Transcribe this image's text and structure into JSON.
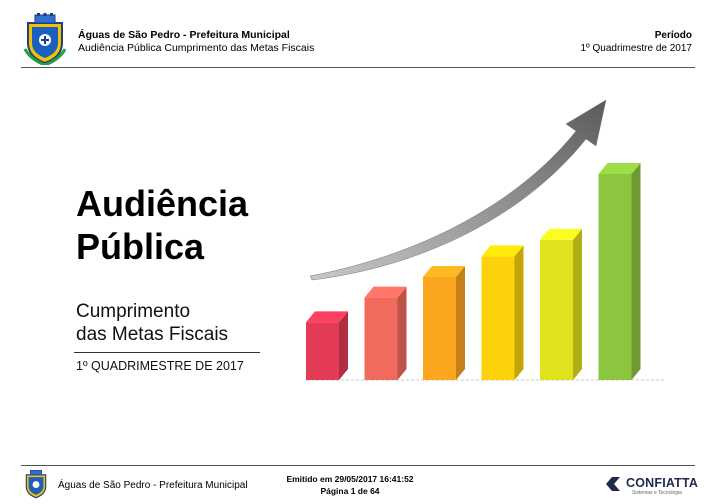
{
  "header": {
    "org_name": "Águas de São Pedro - Prefeitura Municipal",
    "report_title": "Audiência Pública Cumprimento das Metas Fiscais",
    "period_label": "Período",
    "period_value": "1º Quadrimestre de 2017"
  },
  "cover": {
    "title_line1": "Audiência",
    "title_line2": "Pública",
    "subtitle_line1": "Cumprimento",
    "subtitle_line2": "das Metas Fiscais",
    "period": "1º QUADRIMESTRE DE 2017"
  },
  "illustration": {
    "bar_levels": [
      0.28,
      0.4,
      0.5,
      0.6,
      0.68,
      1.0
    ],
    "bar_colors": [
      "#e33a55",
      "#f26a5e",
      "#fba61e",
      "#fdd20a",
      "#dfe21c",
      "#8cc63f"
    ],
    "arrow_color": "#6e6e6e"
  },
  "footer": {
    "org_name": "Águas de São Pedro - Prefeitura Municipal",
    "emitted": "Emitido em 29/05/2017 16:41:52",
    "page": "Página 1 de 64",
    "brand_name": "CONFIATTA",
    "brand_tagline": "Sistemas e Tecnologia"
  }
}
